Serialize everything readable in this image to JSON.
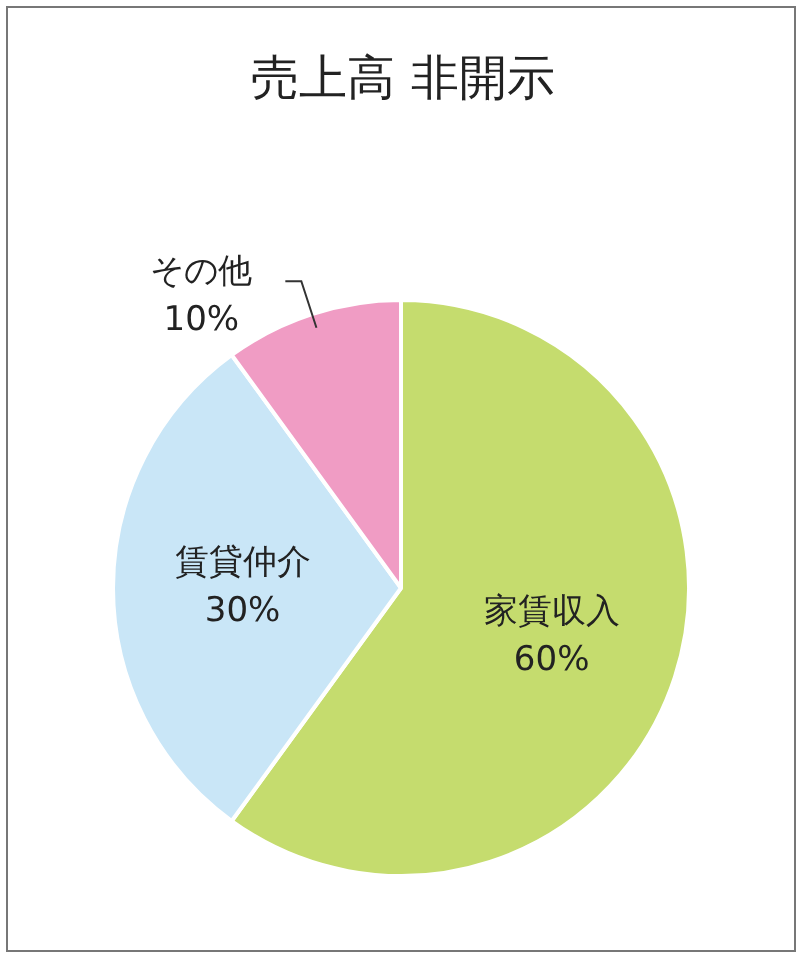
{
  "chart_data": {
    "type": "pie",
    "title": "売上高 非開示",
    "categories": [
      "家賃収入",
      "賃貸仲介",
      "その他"
    ],
    "values": [
      60,
      30,
      10
    ],
    "colors": [
      "#c5dc6e",
      "#c9e6f7",
      "#f09cc4"
    ],
    "value_labels": [
      "60%",
      "30%",
      "10%"
    ],
    "legend": false
  }
}
